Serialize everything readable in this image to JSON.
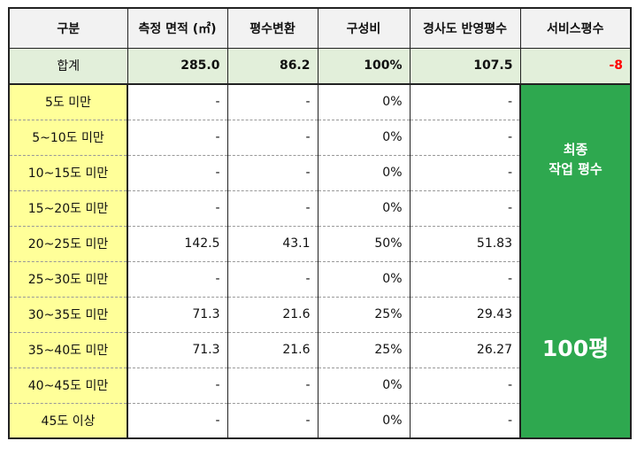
{
  "headers": [
    "구분",
    "측정 면적 (㎡)",
    "평수변환",
    "구성비",
    "경사도 반영평수",
    "서비스평수"
  ],
  "total": {
    "label": "합계",
    "area": "285.0",
    "pyeong": "86.2",
    "ratio": "100%",
    "slope": "107.5",
    "service": "-8"
  },
  "rows": [
    {
      "cat": "5도 미만",
      "area": "-",
      "pyeong": "-",
      "ratio": "0%",
      "slope": "-"
    },
    {
      "cat": "5~10도 미만",
      "area": "-",
      "pyeong": "-",
      "ratio": "0%",
      "slope": "-"
    },
    {
      "cat": "10~15도 미만",
      "area": "-",
      "pyeong": "-",
      "ratio": "0%",
      "slope": "-"
    },
    {
      "cat": "15~20도 미만",
      "area": "-",
      "pyeong": "-",
      "ratio": "0%",
      "slope": "-"
    },
    {
      "cat": "20~25도 미만",
      "area": "142.5",
      "pyeong": "43.1",
      "ratio": "50%",
      "slope": "51.83"
    },
    {
      "cat": "25~30도 미만",
      "area": "-",
      "pyeong": "-",
      "ratio": "0%",
      "slope": "-"
    },
    {
      "cat": "30~35도 미만",
      "area": "71.3",
      "pyeong": "21.6",
      "ratio": "25%",
      "slope": "29.43"
    },
    {
      "cat": "35~40도 미만",
      "area": "71.3",
      "pyeong": "21.6",
      "ratio": "25%",
      "slope": "26.27"
    },
    {
      "cat": "40~45도 미만",
      "area": "-",
      "pyeong": "-",
      "ratio": "0%",
      "slope": "-"
    },
    {
      "cat": "45도 이상",
      "area": "-",
      "pyeong": "-",
      "ratio": "0%",
      "slope": "-"
    }
  ],
  "service_cell": {
    "line1": "최종",
    "line2": "작업 평수",
    "value": "100평"
  },
  "colors": {
    "header_bg": "#f2f2f2",
    "total_bg": "#e2efda",
    "category_bg": "#ffff99",
    "service_bg": "#2ea84f",
    "negative": "#ff0000"
  }
}
